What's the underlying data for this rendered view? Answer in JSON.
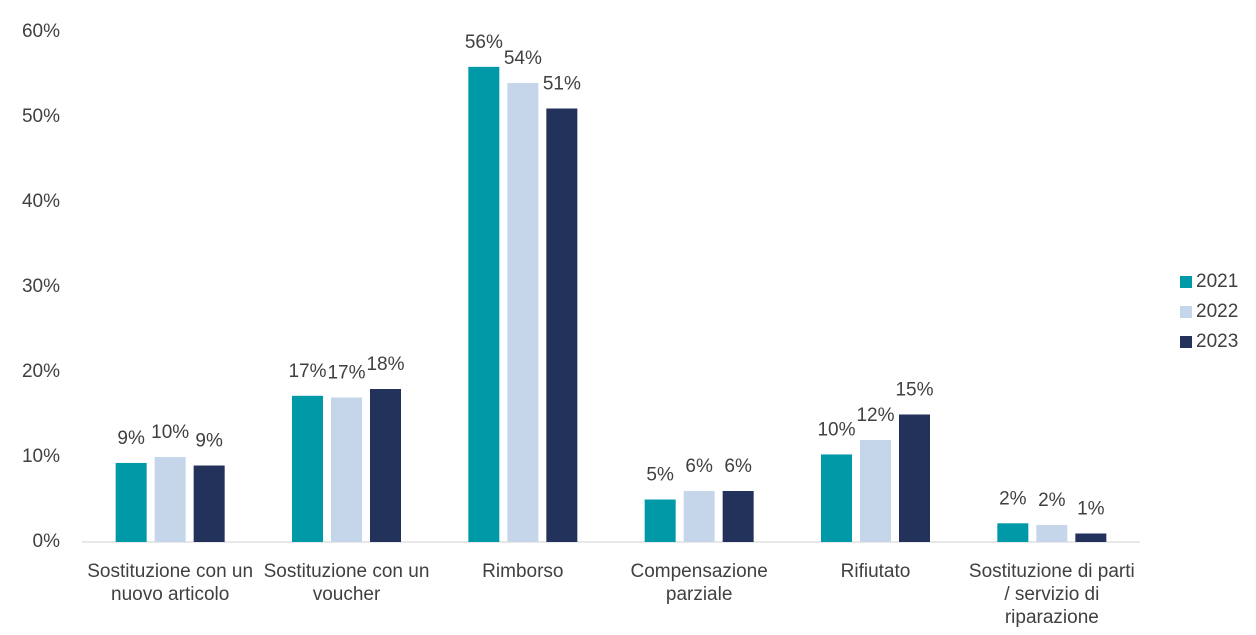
{
  "chart_data": {
    "type": "bar",
    "categories": [
      "Sostituzione con un nuovo articolo",
      "Sostituzione con un voucher",
      "Rimborso",
      "Compensazione parziale",
      "Rifiutato",
      "Sostituzione di parti / servizio di riparazione"
    ],
    "series": [
      {
        "name": "2021",
        "color": "#0099a8",
        "values": [
          9.3,
          17.2,
          55.9,
          5,
          10.3,
          2.2
        ],
        "value_labels": [
          "9%",
          "17%",
          "56%",
          "5%",
          "10%",
          "2%"
        ]
      },
      {
        "name": "2022",
        "color": "#c5d6ea",
        "values": [
          10,
          17,
          54,
          6,
          12,
          2
        ],
        "value_labels": [
          "10%",
          "17%",
          "54%",
          "6%",
          "12%",
          "2%"
        ]
      },
      {
        "name": "2023",
        "color": "#22325a",
        "values": [
          9,
          18,
          51,
          6,
          15,
          1
        ],
        "value_labels": [
          "9%",
          "18%",
          "51%",
          "6%",
          "15%",
          "1%"
        ]
      }
    ],
    "ylim": [
      0,
      60
    ],
    "yticks": [
      {
        "value": 0,
        "label": "0%"
      },
      {
        "value": 10,
        "label": "10%"
      },
      {
        "value": 20,
        "label": "20%"
      },
      {
        "value": 30,
        "label": "30%"
      },
      {
        "value": 40,
        "label": "40%"
      },
      {
        "value": 50,
        "label": "50%"
      },
      {
        "value": 60,
        "label": "60%"
      }
    ],
    "grid": false,
    "legend": "right"
  }
}
